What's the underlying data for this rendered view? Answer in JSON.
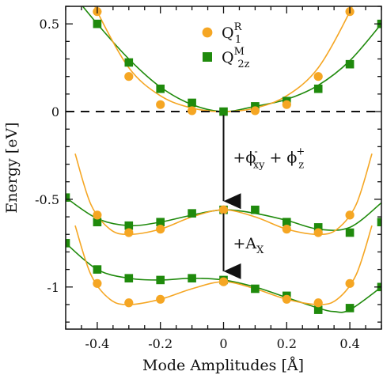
{
  "chart_data": {
    "type": "scatter",
    "xlabel": "Mode Amplitudes [Å]",
    "ylabel": "Energy [eV]",
    "xlim": [
      -0.5,
      0.5
    ],
    "ylim": [
      -1.24,
      0.6
    ],
    "x_ticks": [
      -0.4,
      -0.2,
      0,
      0.2,
      0.4
    ],
    "x_tick_labels": [
      "-0.4",
      "-0.2",
      "0",
      "0.2",
      "0.4"
    ],
    "y_ticks": [
      0.5,
      0,
      -0.5,
      -1
    ],
    "y_tick_labels": [
      "0.5",
      "0",
      "-0.5",
      "-1"
    ],
    "grid": false,
    "legend_position": "top-center",
    "colors": {
      "R": "#f5a623",
      "M": "#1f8a0c",
      "axis": "#111111",
      "reference": "#111111"
    },
    "legend": [
      {
        "key": "R",
        "marker": "circle",
        "label_main": "Q",
        "label_sup": "R",
        "label_sub": "1"
      },
      {
        "key": "M",
        "marker": "square",
        "label_main": "Q",
        "label_sup": "M",
        "label_sub": "2z"
      }
    ],
    "reference_line_y": 0,
    "annotations": {
      "upper": {
        "x": 0,
        "y_from": -0.02,
        "y_to": -0.56,
        "text_parts": [
          "+ϕ",
          "-",
          "xy",
          " + ϕ",
          "+",
          "z"
        ],
        "label_x": 0.03,
        "label_y": -0.29
      },
      "lower": {
        "x": 0,
        "y_from": -0.58,
        "y_to": -0.96,
        "text_parts": [
          "+A",
          "X"
        ],
        "label_x": 0.03,
        "label_y": -0.78
      }
    },
    "series": [
      {
        "name": "Q1R single",
        "group": "R",
        "marker": "circle",
        "x": [
          -0.4,
          -0.3,
          -0.2,
          -0.1,
          0.1,
          0.2,
          0.3,
          0.4
        ],
        "y": [
          0.57,
          0.2,
          0.04,
          0.005,
          0.005,
          0.04,
          0.2,
          0.57
        ],
        "fit": [
          [
            -0.43,
            0.72
          ],
          [
            -0.4,
            0.57
          ],
          [
            -0.3,
            0.25
          ],
          [
            -0.2,
            0.09
          ],
          [
            -0.1,
            0.02
          ],
          [
            0.0,
            0.0
          ],
          [
            0.1,
            0.02
          ],
          [
            0.2,
            0.09
          ],
          [
            0.3,
            0.25
          ],
          [
            0.4,
            0.57
          ],
          [
            0.43,
            0.72
          ]
        ]
      },
      {
        "name": "Q2zM single",
        "group": "M",
        "marker": "square",
        "x": [
          -0.5,
          -0.4,
          -0.3,
          -0.2,
          -0.1,
          0.0,
          0.1,
          0.2,
          0.3,
          0.4,
          0.5
        ],
        "y": [
          0.72,
          0.5,
          0.28,
          0.13,
          0.05,
          0.0,
          0.03,
          0.06,
          0.13,
          0.27,
          0.5
        ],
        "fit": [
          [
            -0.5,
            0.72
          ],
          [
            -0.4,
            0.5
          ],
          [
            -0.3,
            0.3
          ],
          [
            -0.2,
            0.14
          ],
          [
            -0.1,
            0.04
          ],
          [
            0.0,
            0.0
          ],
          [
            0.1,
            0.03
          ],
          [
            0.2,
            0.07
          ],
          [
            0.3,
            0.15
          ],
          [
            0.4,
            0.29
          ],
          [
            0.5,
            0.5
          ]
        ]
      },
      {
        "name": "Q1R with phi",
        "group": "R",
        "marker": "circle",
        "x": [
          -0.4,
          -0.3,
          -0.2,
          0.0,
          0.2,
          0.3,
          0.4
        ],
        "y": [
          -0.59,
          -0.69,
          -0.67,
          -0.56,
          -0.67,
          -0.69,
          -0.59
        ],
        "fit": [
          [
            -0.47,
            -0.24
          ],
          [
            -0.42,
            -0.53
          ],
          [
            -0.36,
            -0.67
          ],
          [
            -0.3,
            -0.7
          ],
          [
            -0.2,
            -0.67
          ],
          [
            -0.1,
            -0.6
          ],
          [
            0.0,
            -0.56
          ],
          [
            0.1,
            -0.6
          ],
          [
            0.2,
            -0.67
          ],
          [
            0.3,
            -0.7
          ],
          [
            0.36,
            -0.67
          ],
          [
            0.42,
            -0.53
          ],
          [
            0.47,
            -0.24
          ]
        ]
      },
      {
        "name": "Q2zM with phi",
        "group": "M",
        "marker": "square",
        "x": [
          -0.5,
          -0.4,
          -0.3,
          -0.2,
          -0.1,
          0.0,
          0.1,
          0.2,
          0.3,
          0.4,
          0.5
        ],
        "y": [
          -0.49,
          -0.63,
          -0.65,
          -0.63,
          -0.58,
          -0.56,
          -0.56,
          -0.63,
          -0.66,
          -0.69,
          -0.63
        ],
        "fit": [
          [
            -0.5,
            -0.49
          ],
          [
            -0.4,
            -0.61
          ],
          [
            -0.3,
            -0.65
          ],
          [
            -0.2,
            -0.63
          ],
          [
            -0.1,
            -0.59
          ],
          [
            0.0,
            -0.56
          ],
          [
            0.1,
            -0.58
          ],
          [
            0.2,
            -0.62
          ],
          [
            0.3,
            -0.67
          ],
          [
            0.4,
            -0.66
          ],
          [
            0.5,
            -0.52
          ]
        ]
      },
      {
        "name": "Q1R with A",
        "group": "R",
        "marker": "circle",
        "x": [
          -0.4,
          -0.3,
          -0.2,
          0.0,
          0.2,
          0.3,
          0.4
        ],
        "y": [
          -0.98,
          -1.09,
          -1.07,
          -0.97,
          -1.07,
          -1.09,
          -0.98
        ],
        "fit": [
          [
            -0.47,
            -0.65
          ],
          [
            -0.42,
            -0.93
          ],
          [
            -0.36,
            -1.07
          ],
          [
            -0.3,
            -1.1
          ],
          [
            -0.2,
            -1.07
          ],
          [
            -0.1,
            -1.01
          ],
          [
            0.0,
            -0.97
          ],
          [
            0.1,
            -1.01
          ],
          [
            0.2,
            -1.07
          ],
          [
            0.3,
            -1.1
          ],
          [
            0.36,
            -1.07
          ],
          [
            0.42,
            -0.93
          ],
          [
            0.47,
            -0.65
          ]
        ]
      },
      {
        "name": "Q2zM with A",
        "group": "M",
        "marker": "square",
        "x": [
          -0.5,
          -0.4,
          -0.3,
          -0.2,
          -0.1,
          0.0,
          0.1,
          0.2,
          0.3,
          0.4,
          0.5
        ],
        "y": [
          -0.75,
          -0.9,
          -0.95,
          -0.96,
          -0.95,
          -0.96,
          -1.01,
          -1.05,
          -1.13,
          -1.12,
          -1.0
        ],
        "fit": [
          [
            -0.5,
            -0.75
          ],
          [
            -0.4,
            -0.9
          ],
          [
            -0.3,
            -0.95
          ],
          [
            -0.2,
            -0.96
          ],
          [
            -0.1,
            -0.95
          ],
          [
            0.0,
            -0.96
          ],
          [
            0.1,
            -1.0
          ],
          [
            0.2,
            -1.06
          ],
          [
            0.3,
            -1.12
          ],
          [
            0.35,
            -1.14
          ],
          [
            0.4,
            -1.13
          ],
          [
            0.5,
            -1.0
          ]
        ]
      }
    ]
  }
}
